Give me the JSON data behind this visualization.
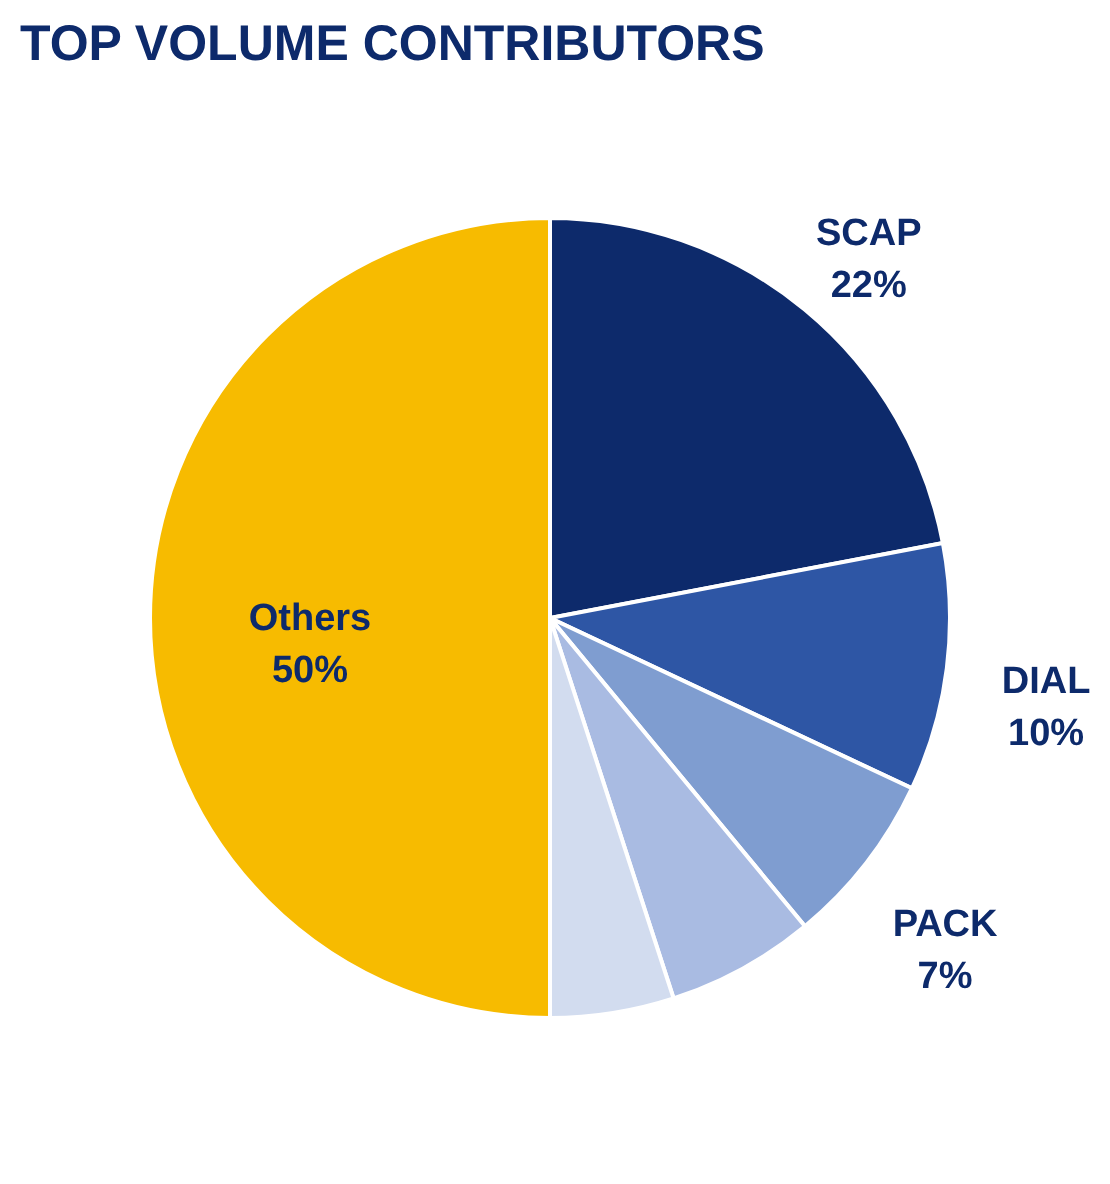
{
  "chart_data": {
    "type": "pie",
    "title": "TOP VOLUME CONTRIBUTORS",
    "categories": [
      "SCAP",
      "DIAL",
      "PACK",
      null,
      null,
      "Others"
    ],
    "values": [
      22,
      10,
      7,
      6,
      5,
      50
    ],
    "colors": [
      "#0d2a6b",
      "#2e56a5",
      "#7f9dd0",
      "#a9bbe2",
      "#d2dcef",
      "#f7bb00"
    ],
    "value_labels": [
      "22%",
      "10%",
      "7%",
      null,
      null,
      "50%"
    ]
  }
}
